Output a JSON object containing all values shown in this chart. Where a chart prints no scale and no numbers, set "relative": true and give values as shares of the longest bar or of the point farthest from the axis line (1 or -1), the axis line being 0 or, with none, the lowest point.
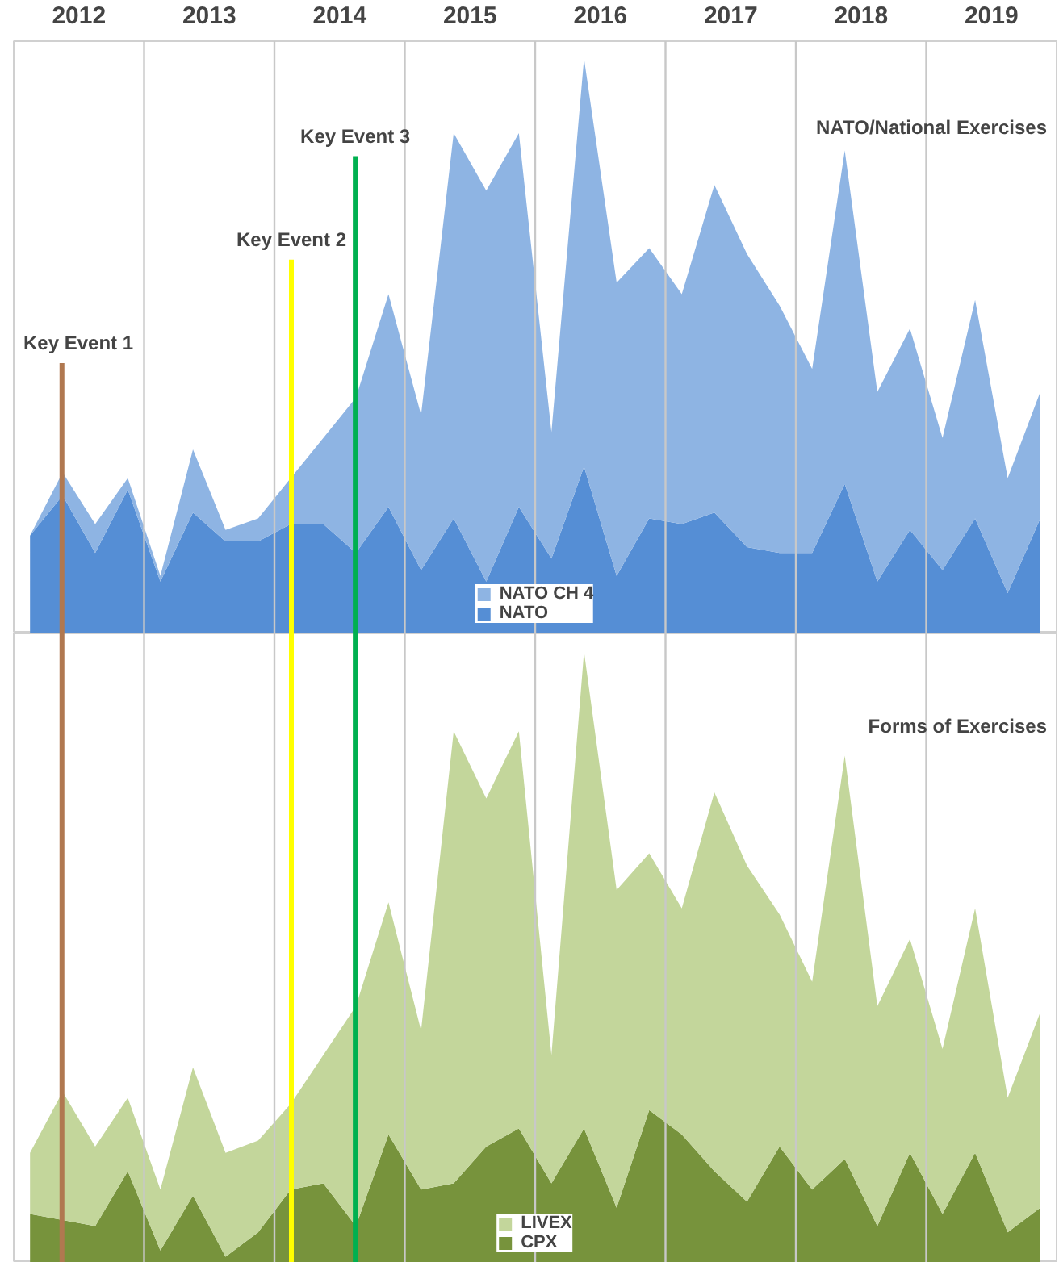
{
  "chart_data": [
    {
      "type": "area",
      "stacked": true,
      "relative": true,
      "legend": "bottom",
      "tick_labels": "x",
      "annotations": [
        "NATO/National Exercises"
      ],
      "x": [
        2012.125,
        2012.375,
        2012.625,
        2012.875,
        2013.125,
        2013.375,
        2013.625,
        2013.875,
        2014.125,
        2014.375,
        2014.625,
        2014.875,
        2015.125,
        2015.375,
        2015.625,
        2015.875,
        2016.125,
        2016.375,
        2016.625,
        2016.875,
        2017.125,
        2017.375,
        2017.625,
        2017.875,
        2018.125,
        2018.375,
        2018.625,
        2018.875,
        2019.125,
        2019.375,
        2019.625,
        2019.875
      ],
      "xlim": [
        2012,
        2020
      ],
      "xticks": [
        {
          "value": 2012.5,
          "label": "2012"
        },
        {
          "value": 2013.5,
          "label": "2013"
        },
        {
          "value": 2014.5,
          "label": "2014"
        },
        {
          "value": 2015.5,
          "label": "2015"
        },
        {
          "value": 2016.5,
          "label": "2016"
        },
        {
          "value": 2017.5,
          "label": "2017"
        },
        {
          "value": 2018.5,
          "label": "2018"
        },
        {
          "value": 2019.5,
          "label": "2019"
        }
      ],
      "series": [
        {
          "name": "NATO",
          "color": "#558ed5",
          "values": [
            0.17,
            0.24,
            0.14,
            0.25,
            0.09,
            0.21,
            0.16,
            0.16,
            0.19,
            0.19,
            0.14,
            0.22,
            0.11,
            0.2,
            0.09,
            0.22,
            0.13,
            0.29,
            0.1,
            0.2,
            0.19,
            0.21,
            0.15,
            0.14,
            0.14,
            0.26,
            0.09,
            0.18,
            0.11,
            0.2,
            0.07,
            0.2
          ]
        },
        {
          "name": "NATO CH 4",
          "color": "#8eb4e3",
          "values": [
            0.0,
            0.04,
            0.05,
            0.02,
            0.01,
            0.11,
            0.02,
            0.04,
            0.08,
            0.15,
            0.27,
            0.37,
            0.27,
            0.67,
            0.68,
            0.65,
            0.22,
            0.71,
            0.51,
            0.47,
            0.4,
            0.57,
            0.51,
            0.43,
            0.32,
            0.58,
            0.33,
            0.35,
            0.23,
            0.38,
            0.2,
            0.22
          ]
        }
      ],
      "ref_lines": [
        {
          "axis": "x",
          "value": 2013,
          "label": null,
          "color": "#c8c8c8"
        },
        {
          "axis": "x",
          "value": 2014,
          "label": null,
          "color": "#c8c8c8"
        },
        {
          "axis": "x",
          "value": 2015,
          "label": null,
          "color": "#c8c8c8"
        },
        {
          "axis": "x",
          "value": 2016,
          "label": null,
          "color": "#c8c8c8"
        },
        {
          "axis": "x",
          "value": 2017,
          "label": null,
          "color": "#c8c8c8"
        },
        {
          "axis": "x",
          "value": 2018,
          "label": null,
          "color": "#c8c8c8"
        },
        {
          "axis": "x",
          "value": 2019,
          "label": null,
          "color": "#c8c8c8"
        },
        {
          "axis": "x",
          "value": 2012.37,
          "label": "Key Event 1",
          "color": "#b07850"
        },
        {
          "axis": "x",
          "value": 2014.13,
          "label": "Key Event 2",
          "color": "#ffff00"
        },
        {
          "axis": "x",
          "value": 2014.62,
          "label": "Key Event 3",
          "color": "#00b050"
        }
      ]
    },
    {
      "type": "area",
      "stacked": true,
      "relative": true,
      "legend": "bottom",
      "tick_labels": false,
      "annotations": [
        "Forms of Exercises"
      ],
      "x": [
        2012.125,
        2012.375,
        2012.625,
        2012.875,
        2013.125,
        2013.375,
        2013.625,
        2013.875,
        2014.125,
        2014.375,
        2014.625,
        2014.875,
        2015.125,
        2015.375,
        2015.625,
        2015.875,
        2016.125,
        2016.375,
        2016.625,
        2016.875,
        2017.125,
        2017.375,
        2017.625,
        2017.875,
        2018.125,
        2018.375,
        2018.625,
        2018.875,
        2019.125,
        2019.375,
        2019.625,
        2019.875
      ],
      "xlim": [
        2012,
        2020
      ],
      "series": [
        {
          "name": "CPX",
          "color": "#77933c",
          "values": [
            0.08,
            0.07,
            0.06,
            0.15,
            0.02,
            0.11,
            0.01,
            0.05,
            0.12,
            0.13,
            0.06,
            0.21,
            0.12,
            0.13,
            0.19,
            0.22,
            0.13,
            0.22,
            0.09,
            0.25,
            0.21,
            0.15,
            0.1,
            0.19,
            0.12,
            0.17,
            0.06,
            0.18,
            0.08,
            0.18,
            0.05,
            0.09
          ]
        },
        {
          "name": "LIVEX",
          "color": "#c3d69b",
          "values": [
            0.1,
            0.21,
            0.13,
            0.12,
            0.1,
            0.21,
            0.17,
            0.15,
            0.14,
            0.21,
            0.36,
            0.38,
            0.26,
            0.74,
            0.57,
            0.65,
            0.21,
            0.78,
            0.52,
            0.42,
            0.37,
            0.62,
            0.55,
            0.38,
            0.34,
            0.66,
            0.36,
            0.35,
            0.27,
            0.4,
            0.22,
            0.32
          ]
        }
      ],
      "ref_lines": [
        {
          "axis": "x",
          "value": 2013,
          "label": null,
          "color": "#c8c8c8"
        },
        {
          "axis": "x",
          "value": 2014,
          "label": null,
          "color": "#c8c8c8"
        },
        {
          "axis": "x",
          "value": 2015,
          "label": null,
          "color": "#c8c8c8"
        },
        {
          "axis": "x",
          "value": 2016,
          "label": null,
          "color": "#c8c8c8"
        },
        {
          "axis": "x",
          "value": 2017,
          "label": null,
          "color": "#c8c8c8"
        },
        {
          "axis": "x",
          "value": 2018,
          "label": null,
          "color": "#c8c8c8"
        },
        {
          "axis": "x",
          "value": 2019,
          "label": null,
          "color": "#c8c8c8"
        },
        {
          "axis": "x",
          "value": 2012.37,
          "label": null,
          "color": "#b07850"
        },
        {
          "axis": "x",
          "value": 2014.13,
          "label": null,
          "color": "#ffff00"
        },
        {
          "axis": "x",
          "value": 2014.62,
          "label": null,
          "color": "#00b050"
        }
      ]
    }
  ]
}
